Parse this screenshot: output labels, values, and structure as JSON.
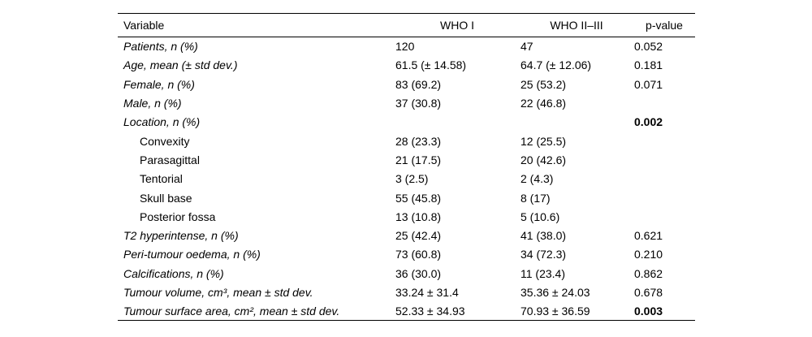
{
  "table": {
    "header": {
      "variable": "Variable",
      "who1": "WHO I",
      "who23": "WHO II–III",
      "p": "p-value"
    },
    "rows": [
      {
        "label": "Patients, n (%)",
        "italic": true,
        "indent": false,
        "who1": "120",
        "who23": "47",
        "p": "0.052",
        "p_bold": false
      },
      {
        "label": "Age, mean (± std dev.)",
        "italic": true,
        "indent": false,
        "who1": "61.5 (± 14.58)",
        "who23": "64.7 (± 12.06)",
        "p": "0.181",
        "p_bold": false
      },
      {
        "label": "Female, n (%)",
        "italic": true,
        "indent": false,
        "who1": "83 (69.2)",
        "who23": "25 (53.2)",
        "p": "0.071",
        "p_bold": false
      },
      {
        "label": "Male, n (%)",
        "italic": true,
        "indent": false,
        "who1": "37 (30.8)",
        "who23": "22 (46.8)",
        "p": "",
        "p_bold": false
      },
      {
        "label": "Location, n (%)",
        "italic": true,
        "indent": false,
        "who1": "",
        "who23": "",
        "p": "0.002",
        "p_bold": true
      },
      {
        "label": "Convexity",
        "italic": false,
        "indent": true,
        "who1": "28 (23.3)",
        "who23": "12 (25.5)",
        "p": "",
        "p_bold": false
      },
      {
        "label": "Parasagittal",
        "italic": false,
        "indent": true,
        "who1": "21 (17.5)",
        "who23": "20 (42.6)",
        "p": "",
        "p_bold": false
      },
      {
        "label": "Tentorial",
        "italic": false,
        "indent": true,
        "who1": "3 (2.5)",
        "who23": "2 (4.3)",
        "p": "",
        "p_bold": false
      },
      {
        "label": "Skull base",
        "italic": false,
        "indent": true,
        "who1": "55 (45.8)",
        "who23": "8 (17)",
        "p": "",
        "p_bold": false
      },
      {
        "label": "Posterior fossa",
        "italic": false,
        "indent": true,
        "who1": "13 (10.8)",
        "who23": "5 (10.6)",
        "p": "",
        "p_bold": false
      },
      {
        "label": "T2 hyperintense, n (%)",
        "italic": true,
        "indent": false,
        "who1": "25 (42.4)",
        "who23": "41 (38.0)",
        "p": "0.621",
        "p_bold": false
      },
      {
        "label": "Peri-tumour oedema, n (%)",
        "italic": true,
        "indent": false,
        "who1": "73 (60.8)",
        "who23": "34 (72.3)",
        "p": "0.210",
        "p_bold": false
      },
      {
        "label": "Calcifications, n (%)",
        "italic": true,
        "indent": false,
        "who1": "36 (30.0)",
        "who23": "11 (23.4)",
        "p": "0.862",
        "p_bold": false
      },
      {
        "label": "Tumour volume, cm³, mean ± std dev.",
        "italic": true,
        "indent": false,
        "who1": "33.24 ± 31.4",
        "who23": "35.36 ± 24.03",
        "p": "0.678",
        "p_bold": false
      },
      {
        "label": "Tumour surface area, cm², mean ± std dev.",
        "italic": true,
        "indent": false,
        "who1": "52.33 ± 34.93",
        "who23": "70.93 ± 36.59",
        "p": "0.003",
        "p_bold": true
      }
    ]
  },
  "colors": {
    "text": "#000000",
    "rule": "#000000",
    "background": "#ffffff"
  }
}
